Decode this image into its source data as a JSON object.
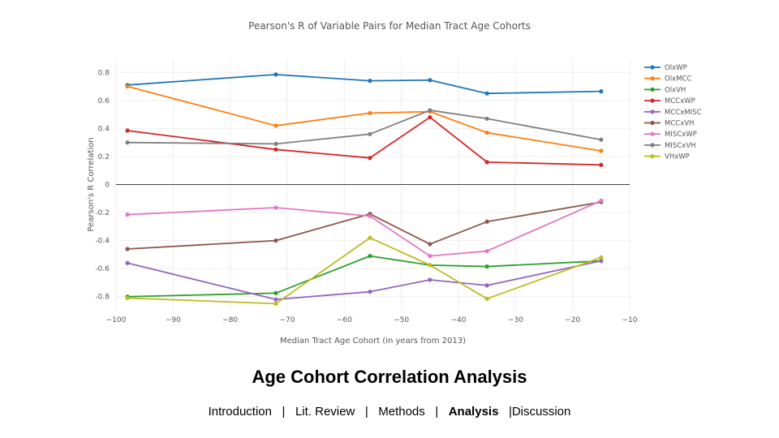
{
  "slide": {
    "title": "Age Cohort Correlation Analysis",
    "nav": {
      "items": [
        "Introduction",
        "Lit. Review",
        "Methods",
        "Analysis",
        "Discussion"
      ],
      "separator": "|",
      "active": "Analysis"
    }
  },
  "chart_data": {
    "type": "line",
    "title": "Pearson's R of Variable Pairs for Median Tract Age Cohorts",
    "xlabel": "Median Tract Age Cohort (in years from 2013)",
    "ylabel": "Pearson's R Correlation",
    "xlim": [
      -100,
      -10
    ],
    "ylim": [
      -0.9,
      0.9
    ],
    "xticks": [
      -100,
      -90,
      -80,
      -70,
      -60,
      -50,
      -40,
      -30,
      -20,
      -10
    ],
    "yticks": [
      0.8,
      0.6,
      0.4,
      0.2,
      0,
      -0.2,
      -0.4,
      -0.6,
      -0.8
    ],
    "grid": true,
    "legend_position": "right",
    "x": [
      -98,
      -72,
      -55.5,
      -45,
      -35,
      -15
    ],
    "series": [
      {
        "name": "OlxWP",
        "color": "#1f77b4",
        "values": [
          0.71,
          0.785,
          0.74,
          0.745,
          0.65,
          0.665
        ]
      },
      {
        "name": "OlxMCC",
        "color": "#ff7f0e",
        "values": [
          0.7,
          0.42,
          0.51,
          0.52,
          0.37,
          0.24
        ]
      },
      {
        "name": "OlxVH",
        "color": "#2ca02c",
        "values": [
          -0.8,
          -0.775,
          -0.51,
          -0.575,
          -0.585,
          -0.545
        ]
      },
      {
        "name": "MCCxWP",
        "color": "#d62728",
        "values": [
          0.385,
          0.25,
          0.19,
          0.48,
          0.16,
          0.14
        ]
      },
      {
        "name": "MCCxMISC",
        "color": "#9467bd",
        "values": [
          -0.56,
          -0.82,
          -0.765,
          -0.68,
          -0.72,
          -0.545
        ]
      },
      {
        "name": "MCCxVH",
        "color": "#8c564b",
        "values": [
          -0.46,
          -0.4,
          -0.21,
          -0.425,
          -0.265,
          -0.125
        ]
      },
      {
        "name": "MISCxWP",
        "color": "#e377c2",
        "values": [
          -0.215,
          -0.165,
          -0.225,
          -0.51,
          -0.475,
          -0.115
        ]
      },
      {
        "name": "MISCxVH",
        "color": "#7f7f7f",
        "values": [
          0.3,
          0.29,
          0.36,
          0.53,
          0.47,
          0.32
        ]
      },
      {
        "name": "VHxWP",
        "color": "#bcbd22",
        "values": [
          -0.81,
          -0.85,
          -0.38,
          -0.575,
          -0.815,
          -0.52
        ]
      }
    ]
  }
}
